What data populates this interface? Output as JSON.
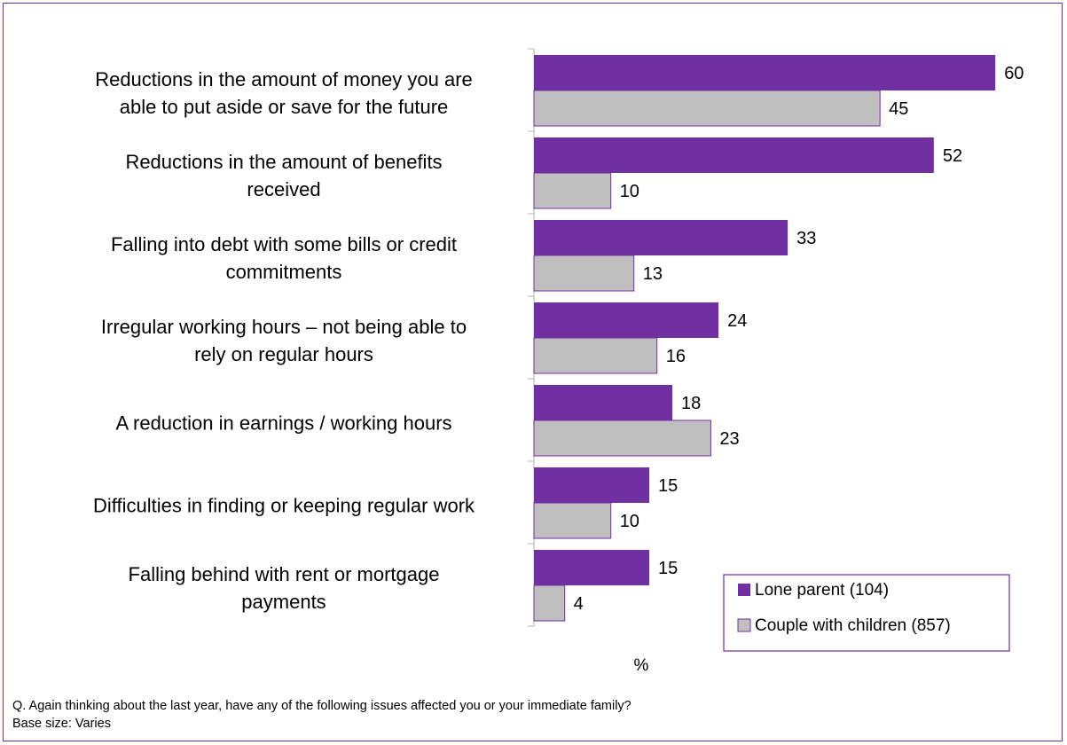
{
  "chart_data": {
    "type": "bar",
    "orientation": "horizontal",
    "categories": [
      [
        "Reductions in the amount of money you are",
        "able to put aside or save for the future"
      ],
      [
        "Reductions in the amount of benefits",
        "received"
      ],
      [
        "Falling into debt with some bills or credit",
        "commitments"
      ],
      [
        "Irregular working hours – not being able to",
        "rely on regular hours"
      ],
      [
        "A reduction in earnings / working hours"
      ],
      [
        "Difficulties in finding or keeping regular work"
      ],
      [
        "Falling behind with rent or mortgage",
        "payments"
      ]
    ],
    "series": [
      {
        "name": "Lone parent (104)",
        "values": [
          60,
          52,
          33,
          24,
          18,
          15,
          15
        ],
        "color": "#7030a0"
      },
      {
        "name": "Couple with children (857)",
        "values": [
          45,
          10,
          13,
          16,
          23,
          10,
          4
        ],
        "color": "#bfbfbf"
      }
    ],
    "xlabel": "%",
    "xlim": [
      0,
      62
    ],
    "legend_position": "bottom-right",
    "grid": false
  },
  "footnote": {
    "question": "Q.  Again thinking about the last year, have any of the following issues affected you or your immediate family?",
    "base": "Base size: Varies"
  }
}
